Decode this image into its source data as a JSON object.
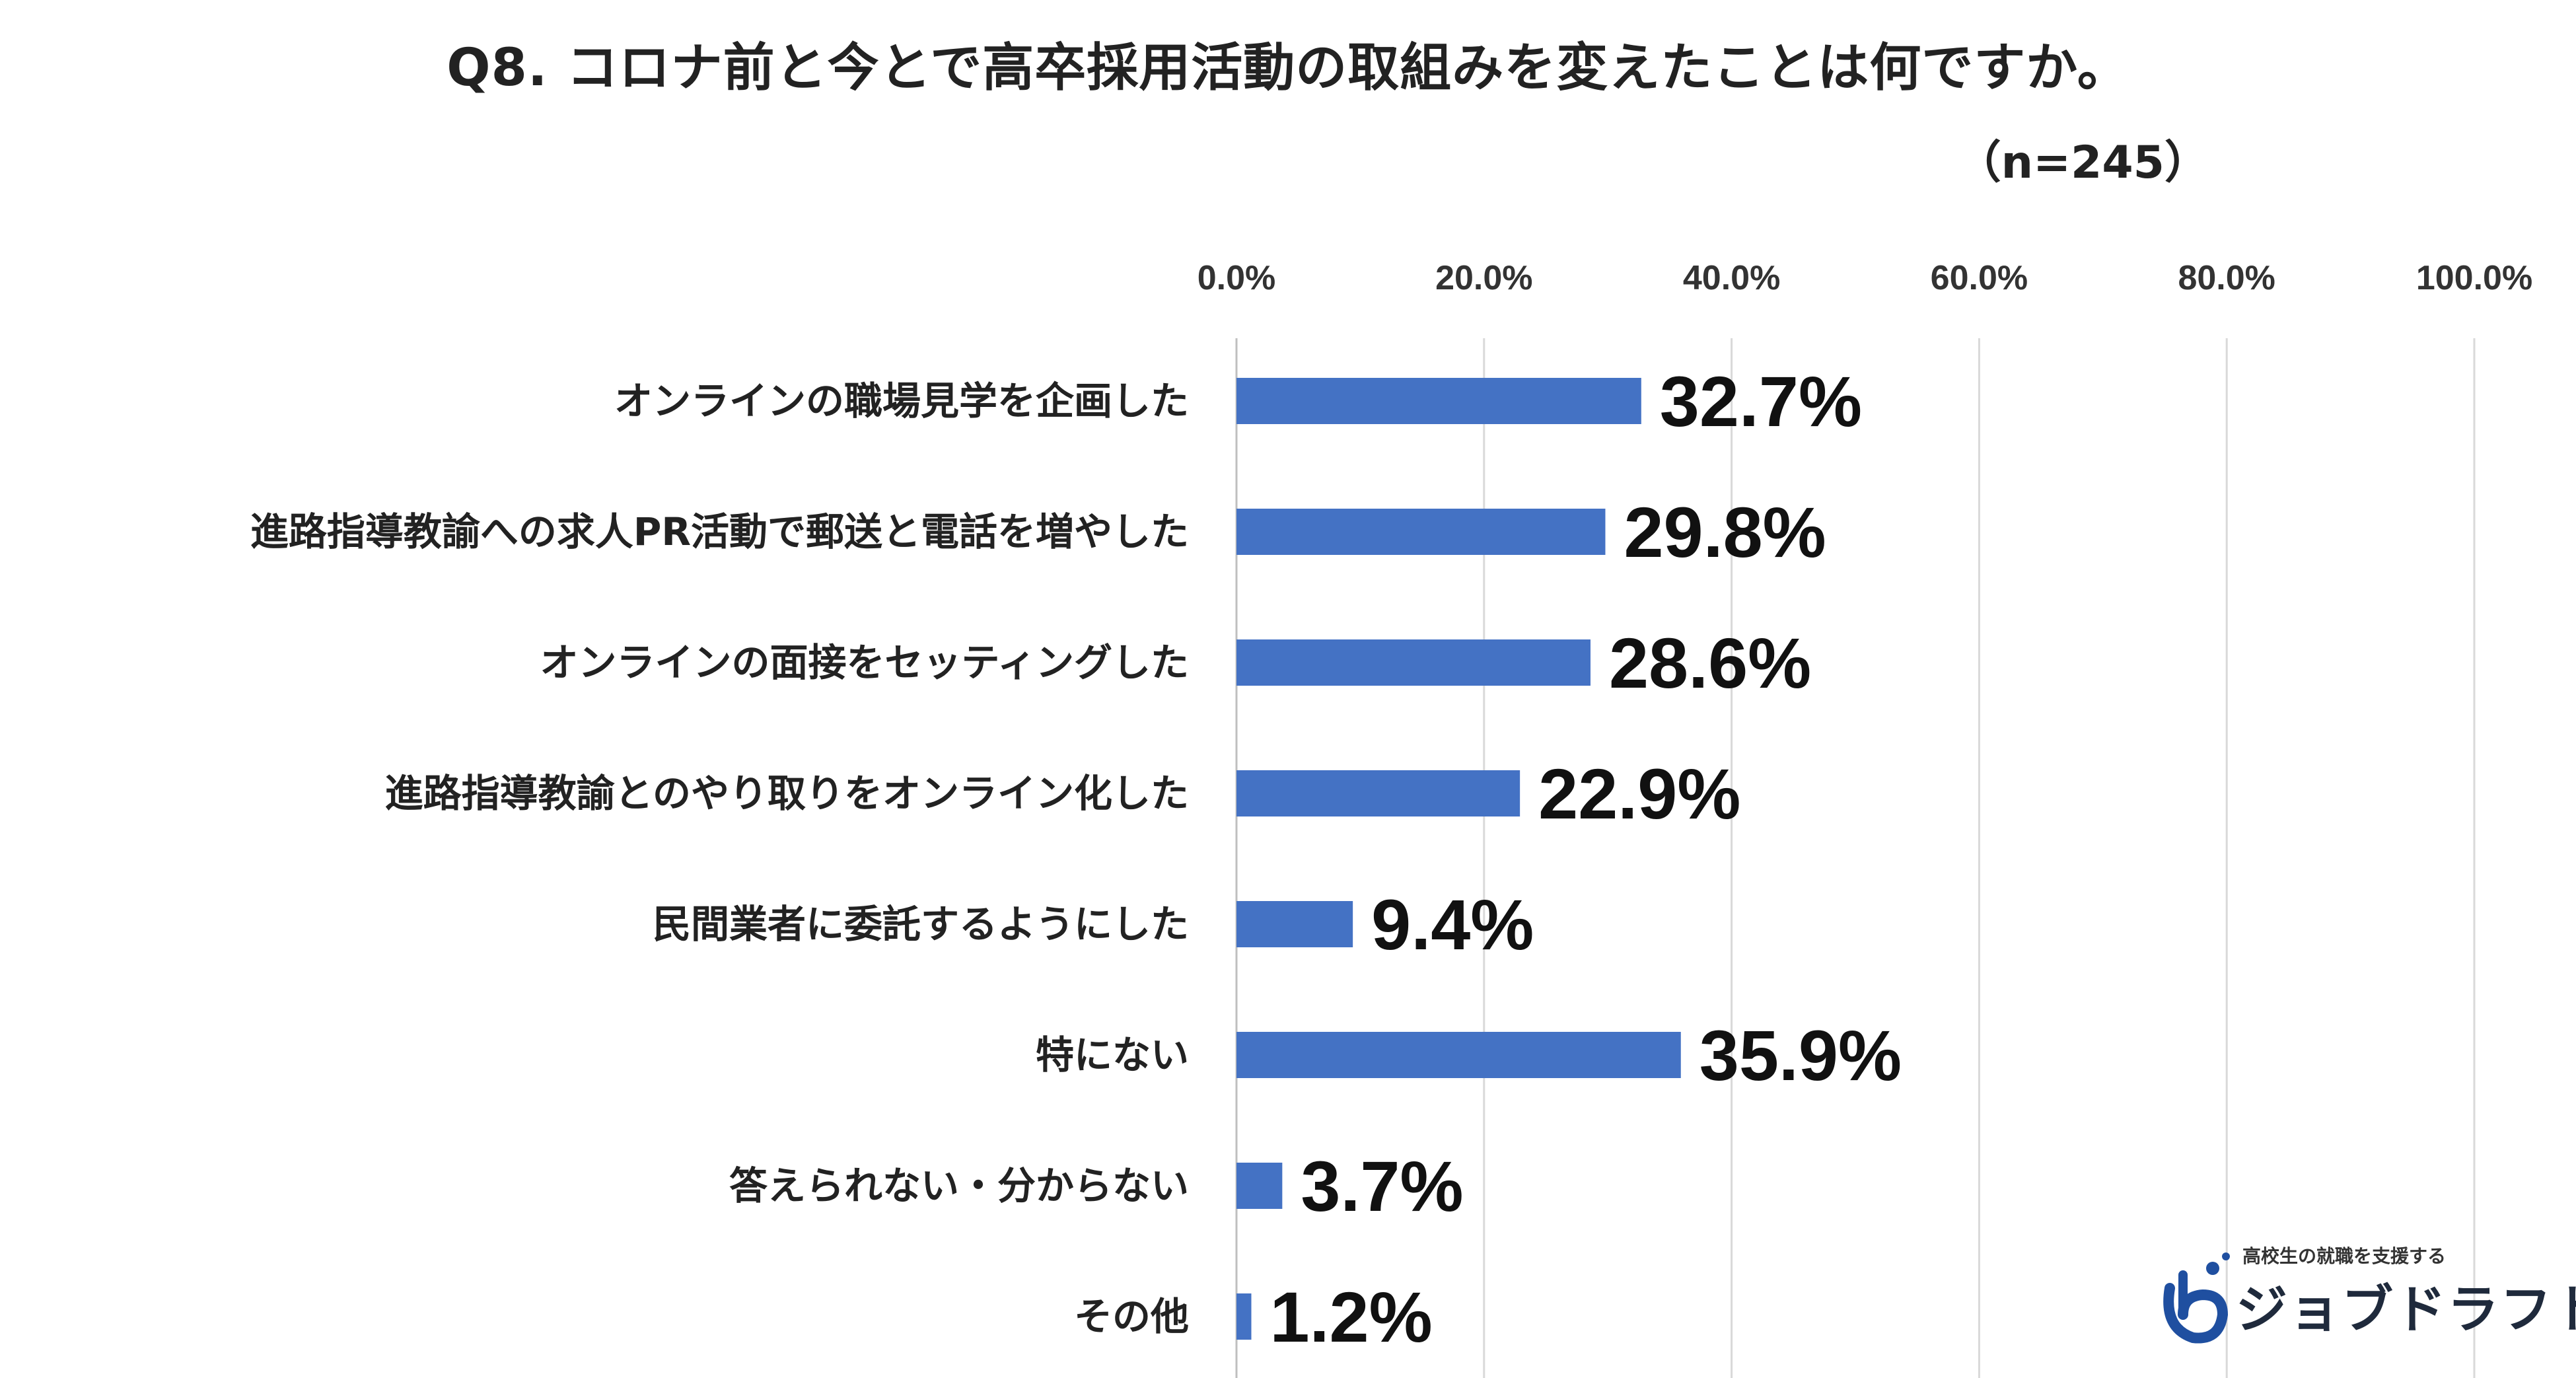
{
  "title": "Q8. コロナ前と今とで高卒採用活動の取組みを変えたことは何ですか。",
  "sample_size": "（n=245）",
  "chart_data": {
    "type": "bar",
    "orientation": "horizontal",
    "categories": [
      "オンラインの職場見学を企画した",
      "進路指導教諭への求人PR活動で郵送と電話を増やした",
      "オンラインの面接をセッティングした",
      "進路指導教諭とのやり取りをオンライン化した",
      "民間業者に委託するようにした",
      "特にない",
      "答えられない・分からない",
      "その他"
    ],
    "values": [
      32.7,
      29.8,
      28.6,
      22.9,
      9.4,
      35.9,
      3.7,
      1.2
    ],
    "value_labels": [
      "32.7%",
      "29.8%",
      "28.6%",
      "22.9%",
      "9.4%",
      "35.9%",
      "3.7%",
      "1.2%"
    ],
    "xlim": [
      0,
      100
    ],
    "xticks": [
      "0.0%",
      "20.0%",
      "40.0%",
      "60.0%",
      "80.0%",
      "100.0%"
    ],
    "grid": true,
    "axis_position": "top",
    "bar_color": "#4472C4"
  },
  "logo": {
    "tagline": "高校生の就職を支援する",
    "name": "ジョブドラフト",
    "color": "#1f4fa0"
  }
}
